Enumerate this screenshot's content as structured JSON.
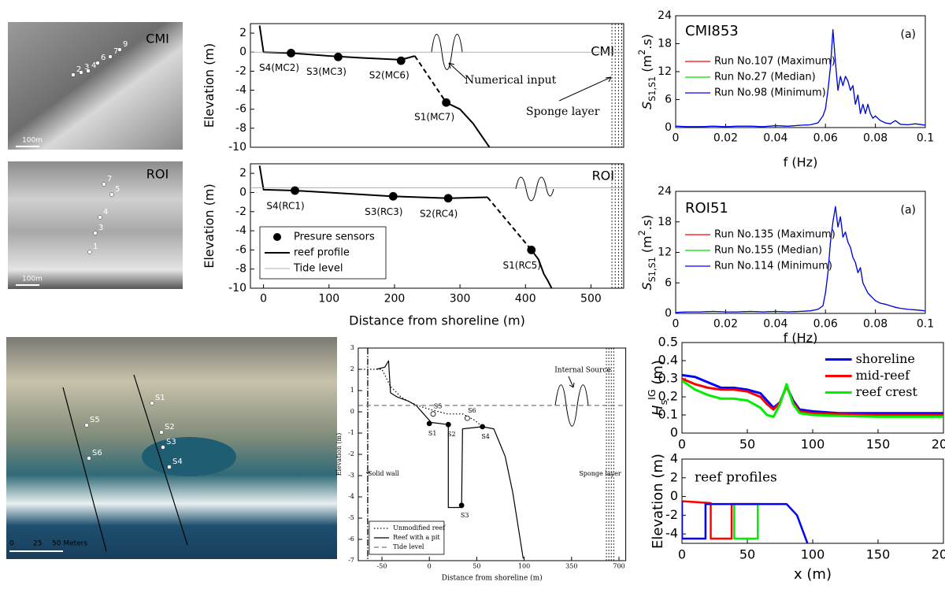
{
  "images": [
    {
      "title": "CMI",
      "points": [
        "2",
        "3",
        "4",
        "6",
        "7",
        "9"
      ],
      "scale": [
        "100m"
      ]
    },
    {
      "title": "ROI",
      "points": [
        "7",
        "5",
        "4",
        "3",
        "1"
      ],
      "scale": [
        "100m"
      ]
    },
    {
      "points": [
        "S1",
        "S2",
        "S3",
        "S4",
        "S5",
        "S6"
      ],
      "scale": [
        "0",
        "25",
        "50 Meters"
      ]
    }
  ],
  "chart_data": [
    {
      "type": "line",
      "ylabel": [
        {
          "text": "Elevation (m)"
        }
      ],
      "xlim": [
        -20,
        550
      ],
      "ylim": [
        -10,
        3
      ],
      "yticks": [
        2,
        0,
        -2,
        -4,
        -6,
        -8,
        -10
      ],
      "annotations": [
        "CMI",
        "Numerical input",
        "Sponge layer"
      ],
      "sponge_x": [
        532,
        537,
        542,
        547
      ],
      "series": [
        {
          "color": "#000",
          "x": [
            -6,
            0,
            42,
            100,
            150,
            210,
            231
          ],
          "values": [
            2.8,
            0,
            -0.1,
            -0.4,
            -0.6,
            -0.8,
            -0.4
          ]
        },
        {
          "color": "#000",
          "style": "dashed",
          "x": [
            231,
            279
          ],
          "values": [
            -0.4,
            -5.3
          ]
        },
        {
          "color": "#000",
          "x": [
            279,
            300,
            320,
            335,
            345
          ],
          "values": [
            -5.3,
            -6,
            -7.5,
            -9,
            -10
          ]
        },
        {
          "color": "#000",
          "marker": "dot",
          "x": [
            42,
            114,
            210,
            279
          ],
          "values": [
            -0.1,
            -0.5,
            -0.9,
            -5.3
          ],
          "labels": [
            "S4(MC2)",
            "S3(MC3)",
            "S2(MC6)",
            "S1(MC7)"
          ]
        },
        {
          "color": "#999",
          "style": "thin",
          "hline": 0
        }
      ]
    },
    {
      "type": "line",
      "ylabel": [
        {
          "text": "Elevation (m)"
        }
      ],
      "xlabel": "Distance from shoreline (m)",
      "xlim": [
        -20,
        550
      ],
      "ylim": [
        -10,
        3
      ],
      "xticks": [
        0,
        100,
        200,
        300,
        400,
        500
      ],
      "yticks": [
        2,
        0,
        -2,
        -4,
        -6,
        -8,
        -10
      ],
      "legend": "lower left",
      "annotations": [
        "ROI"
      ],
      "sponge_x": [
        532,
        537,
        542,
        547
      ],
      "series": [
        {
          "name": "Presure sensors",
          "color": "#000",
          "marker": "dot",
          "x": [
            48,
            198,
            282,
            409
          ],
          "values": [
            0.2,
            -0.4,
            -0.6,
            -6
          ],
          "labels": [
            "S4(RC1)",
            "S3(RC3)",
            "S2(RC4)",
            "S1(RC5)"
          ]
        },
        {
          "name": "reef profile",
          "color": "#000",
          "x": [
            -6,
            0,
            48,
            100,
            198,
            282,
            342
          ],
          "values": [
            2.8,
            0.3,
            0.2,
            0,
            -0.4,
            -0.6,
            -0.5
          ]
        },
        {
          "color": "#000",
          "style": "dashed",
          "x": [
            342,
            409
          ],
          "values": [
            -0.5,
            -6
          ]
        },
        {
          "color": "#000",
          "x": [
            409,
            420,
            428,
            434,
            440
          ],
          "values": [
            -6,
            -7,
            -8.5,
            -9.2,
            -10
          ]
        },
        {
          "name": "Tide level",
          "color": "#999",
          "style": "thin",
          "hline": 0.5
        }
      ]
    },
    {
      "type": "line",
      "title": "CMI853",
      "panel_label": "(a)",
      "xlabel": "f (Hz)",
      "ylabel": [
        {
          "text": "S"
        },
        {
          "text": "S1,S1",
          "shift": "sub"
        },
        {
          "text": " (m"
        },
        {
          "text": "2",
          "shift": "sup"
        },
        {
          "text": ".s)"
        }
      ],
      "xlim": [
        0,
        0.1
      ],
      "ylim": [
        0,
        24
      ],
      "xticks": [
        0,
        0.02,
        0.04,
        0.06,
        0.08,
        0.1
      ],
      "yticks": [
        0,
        6,
        12,
        18,
        24
      ],
      "legend": "upper left",
      "x": [
        0,
        0.005,
        0.01,
        0.015,
        0.02,
        0.025,
        0.03,
        0.035,
        0.04,
        0.045,
        0.05,
        0.054,
        0.057,
        0.059,
        0.06,
        0.061,
        0.062,
        0.063,
        0.064,
        0.065,
        0.066,
        0.067,
        0.068,
        0.069,
        0.07,
        0.071,
        0.072,
        0.073,
        0.074,
        0.075,
        0.076,
        0.077,
        0.078,
        0.079,
        0.08,
        0.082,
        0.084,
        0.086,
        0.088,
        0.09,
        0.093,
        0.096,
        0.1
      ],
      "series": [
        {
          "name": "Run No.107 (Maximum)",
          "color": "#ff0000",
          "values": [
            0.3,
            0.2,
            0.2,
            0.3,
            0.2,
            0.3,
            0.3,
            0.2,
            0.4,
            0.3,
            0.5,
            0.6,
            1,
            2.5,
            4,
            8,
            13,
            21,
            14,
            8,
            11,
            9,
            11,
            10,
            8,
            9,
            5,
            7,
            3,
            5,
            3,
            5,
            3,
            2,
            2.5,
            1.5,
            1,
            0.8,
            1.5,
            0.7,
            0.6,
            0.8,
            0.5
          ]
        },
        {
          "name": "Run No.27 (Median)",
          "color": "#00dd00",
          "values": [
            0.3,
            0.2,
            0.2,
            0.3,
            0.2,
            0.3,
            0.3,
            0.2,
            0.4,
            0.3,
            0.5,
            0.6,
            1,
            2.5,
            4,
            8,
            13,
            21,
            14,
            8,
            11,
            9,
            11,
            10,
            8,
            9,
            5,
            7,
            3,
            5,
            3,
            5,
            3,
            2,
            2.5,
            1.5,
            1,
            0.8,
            1.5,
            0.7,
            0.6,
            0.8,
            0.5
          ]
        },
        {
          "name": "Run No.98 (Minimum)",
          "color": "#0000ff",
          "values": [
            0.3,
            0.2,
            0.2,
            0.3,
            0.2,
            0.3,
            0.3,
            0.2,
            0.4,
            0.3,
            0.5,
            0.6,
            1,
            2.5,
            4,
            8,
            13,
            21,
            14,
            8,
            11,
            9,
            11,
            10,
            8,
            9,
            5,
            7,
            3,
            5,
            3,
            5,
            3,
            2,
            2.5,
            1.5,
            1,
            0.8,
            1.5,
            0.7,
            0.6,
            0.8,
            0.5
          ]
        }
      ]
    },
    {
      "type": "line",
      "title": "ROI51",
      "panel_label": "(a)",
      "xlabel": "f (Hz)",
      "ylabel": [
        {
          "text": "S"
        },
        {
          "text": "S1,S1",
          "shift": "sub"
        },
        {
          "text": " (m"
        },
        {
          "text": "2",
          "shift": "sup"
        },
        {
          "text": ".s)"
        }
      ],
      "xlim": [
        0,
        0.1
      ],
      "ylim": [
        0,
        24
      ],
      "xticks": [
        0,
        0.02,
        0.04,
        0.06,
        0.08,
        0.1
      ],
      "yticks": [
        0,
        6,
        12,
        18,
        24
      ],
      "legend": "upper left",
      "x": [
        0,
        0.005,
        0.01,
        0.015,
        0.02,
        0.025,
        0.03,
        0.035,
        0.04,
        0.045,
        0.05,
        0.054,
        0.057,
        0.059,
        0.06,
        0.061,
        0.062,
        0.063,
        0.064,
        0.065,
        0.066,
        0.067,
        0.068,
        0.069,
        0.07,
        0.071,
        0.072,
        0.073,
        0.074,
        0.075,
        0.076,
        0.077,
        0.078,
        0.079,
        0.08,
        0.082,
        0.084,
        0.086,
        0.088,
        0.09,
        0.093,
        0.096,
        0.1
      ],
      "series": [
        {
          "name": "Run No.135 (Maximum)",
          "color": "#ff0000",
          "values": [
            0.2,
            0.3,
            0.3,
            0.4,
            0.3,
            0.3,
            0.4,
            0.3,
            0.4,
            0.3,
            0.4,
            0.5,
            0.8,
            1.5,
            4,
            8,
            14,
            18,
            21,
            17,
            19,
            15,
            16,
            14,
            13,
            11,
            10,
            8,
            9,
            6,
            5,
            4,
            3.5,
            3,
            2.5,
            2,
            1.8,
            1.5,
            1.2,
            1,
            0.8,
            0.7,
            0.5
          ]
        },
        {
          "name": "Run No.155 (Median)",
          "color": "#00dd00",
          "values": [
            0.2,
            0.3,
            0.3,
            0.4,
            0.3,
            0.3,
            0.4,
            0.3,
            0.4,
            0.3,
            0.4,
            0.5,
            0.8,
            1.5,
            4,
            8,
            14,
            18,
            21,
            17,
            19,
            15,
            16,
            14,
            13,
            11,
            10,
            8,
            9,
            6,
            5,
            4,
            3.5,
            3,
            2.5,
            2,
            1.8,
            1.5,
            1.2,
            1,
            0.8,
            0.7,
            0.5
          ]
        },
        {
          "name": "Run No.114 (Minimum)",
          "color": "#0000ff",
          "values": [
            0.2,
            0.3,
            0.3,
            0.4,
            0.3,
            0.3,
            0.4,
            0.3,
            0.4,
            0.3,
            0.4,
            0.5,
            0.8,
            1.5,
            4,
            8,
            14,
            18,
            21,
            17,
            19,
            15,
            16,
            14,
            13,
            11,
            10,
            8,
            9,
            6,
            5,
            4,
            3.5,
            3,
            2.5,
            2,
            1.8,
            1.5,
            1.2,
            1,
            0.8,
            0.7,
            0.5
          ]
        }
      ]
    },
    {
      "type": "line",
      "ylabel": [
        {
          "text": "Elevation (m)"
        }
      ],
      "xlabel": "Distance from shoreline (m)",
      "x_scale": "piecewise",
      "xlim": [
        -75,
        750
      ],
      "ylim": [
        -7,
        3
      ],
      "xticks": [
        -50,
        0,
        50,
        100,
        350,
        700
      ],
      "yticks": [
        3,
        2,
        1,
        0,
        -1,
        -2,
        -3,
        -4,
        -5,
        -6,
        -7
      ],
      "legend": "lower left",
      "annotations": [
        "Internal Source",
        "Solid wall",
        "Sponge layer"
      ],
      "wall_x": -65,
      "sponge_x": [
        607,
        625,
        643,
        661
      ],
      "series": [
        {
          "name": "Unmodified reef",
          "color": "#000",
          "style": "dotted",
          "x": [
            -69,
            -50,
            -41,
            -30,
            -18,
            -6,
            2,
            19,
            35,
            48,
            56
          ],
          "values": [
            2,
            2,
            1.2,
            0.7,
            0.4,
            0.2,
            0.1,
            -0.1,
            -0.1,
            -0.4,
            -0.7
          ]
        },
        {
          "name": "Reef with a pit",
          "color": "#000",
          "x": [
            -56,
            -47,
            -43,
            -41,
            -34,
            -22,
            -14,
            -6,
            2,
            20,
            20,
            34,
            35,
            56,
            68,
            80,
            88,
            99
          ],
          "values": [
            2,
            2.1,
            2.4,
            0.9,
            0.7,
            0.5,
            0.3,
            -0.1,
            -0.5,
            -0.6,
            -4.5,
            -4.5,
            -0.8,
            -0.7,
            -0.8,
            -2.1,
            -3.8,
            -6.9
          ]
        },
        {
          "name": "Tide level",
          "color": "#777",
          "style": "dashed",
          "hline": 0.3
        },
        {
          "color": "#000",
          "marker": "dot",
          "x": [
            0,
            20,
            34,
            56
          ],
          "values": [
            -0.55,
            -0.6,
            -4.4,
            -0.7
          ],
          "labels": [
            "S1",
            "S2",
            "S3",
            "S4"
          ]
        },
        {
          "color": "#000",
          "marker": "open",
          "x": [
            4,
            40
          ],
          "values": [
            -0.1,
            -0.3
          ],
          "labels": [
            "S5",
            "S6"
          ]
        }
      ]
    },
    {
      "type": "line",
      "ylabel": [
        {
          "text": "H"
        },
        {
          "text": "s",
          "shift": "sub"
        },
        {
          "text": "IG",
          "shift": "sup"
        },
        {
          "text": " (m)"
        }
      ],
      "xlim": [
        0,
        200
      ],
      "ylim": [
        0,
        0.5
      ],
      "xticks": [
        0,
        50,
        100,
        150,
        200
      ],
      "yticks": [
        0,
        0.1,
        0.2,
        0.3,
        0.4,
        0.5
      ],
      "legend": "upper right",
      "x": [
        0,
        10,
        20,
        30,
        40,
        50,
        60,
        65,
        70,
        75,
        80,
        85,
        90,
        100,
        120,
        150,
        200
      ],
      "series": [
        {
          "name": "shoreline",
          "color": "#0000ff",
          "values": [
            0.32,
            0.31,
            0.28,
            0.25,
            0.25,
            0.24,
            0.22,
            0.18,
            0.14,
            0.17,
            0.26,
            0.18,
            0.13,
            0.12,
            0.11,
            0.11,
            0.11
          ]
        },
        {
          "name": "mid-reef",
          "color": "#ff0000",
          "values": [
            0.3,
            0.27,
            0.25,
            0.24,
            0.24,
            0.23,
            0.2,
            0.16,
            0.13,
            0.17,
            0.26,
            0.17,
            0.12,
            0.11,
            0.105,
            0.1,
            0.1
          ]
        },
        {
          "name": "reef crest",
          "color": "#00ee00",
          "values": [
            0.29,
            0.24,
            0.21,
            0.19,
            0.19,
            0.18,
            0.14,
            0.1,
            0.09,
            0.16,
            0.27,
            0.16,
            0.11,
            0.1,
            0.095,
            0.09,
            0.09
          ]
        }
      ]
    },
    {
      "type": "line",
      "ylabel": [
        {
          "text": "Elevation (m)"
        }
      ],
      "xlabel": "x (m)",
      "xlim": [
        0,
        200
      ],
      "ylim": [
        -5,
        4
      ],
      "xticks": [
        0,
        50,
        100,
        150,
        200
      ],
      "yticks": [
        -4,
        -2,
        0,
        2,
        4
      ],
      "annotations": [
        "reef profiles"
      ],
      "series": [
        {
          "color": "#ff0000",
          "x": [
            0,
            22,
            22,
            38,
            38,
            60
          ],
          "values": [
            -0.5,
            -0.7,
            -4.5,
            -4.5,
            -0.8,
            -0.8
          ]
        },
        {
          "color": "#00ee00",
          "x": [
            40,
            40,
            58,
            58
          ],
          "values": [
            -0.8,
            -4.5,
            -4.5,
            -0.8
          ]
        },
        {
          "color": "#0000ff",
          "x": [
            0,
            0,
            18,
            18,
            80,
            88,
            96
          ],
          "values": [
            -0.5,
            -4.5,
            -4.5,
            -0.8,
            -0.8,
            -2,
            -5
          ]
        }
      ]
    }
  ]
}
